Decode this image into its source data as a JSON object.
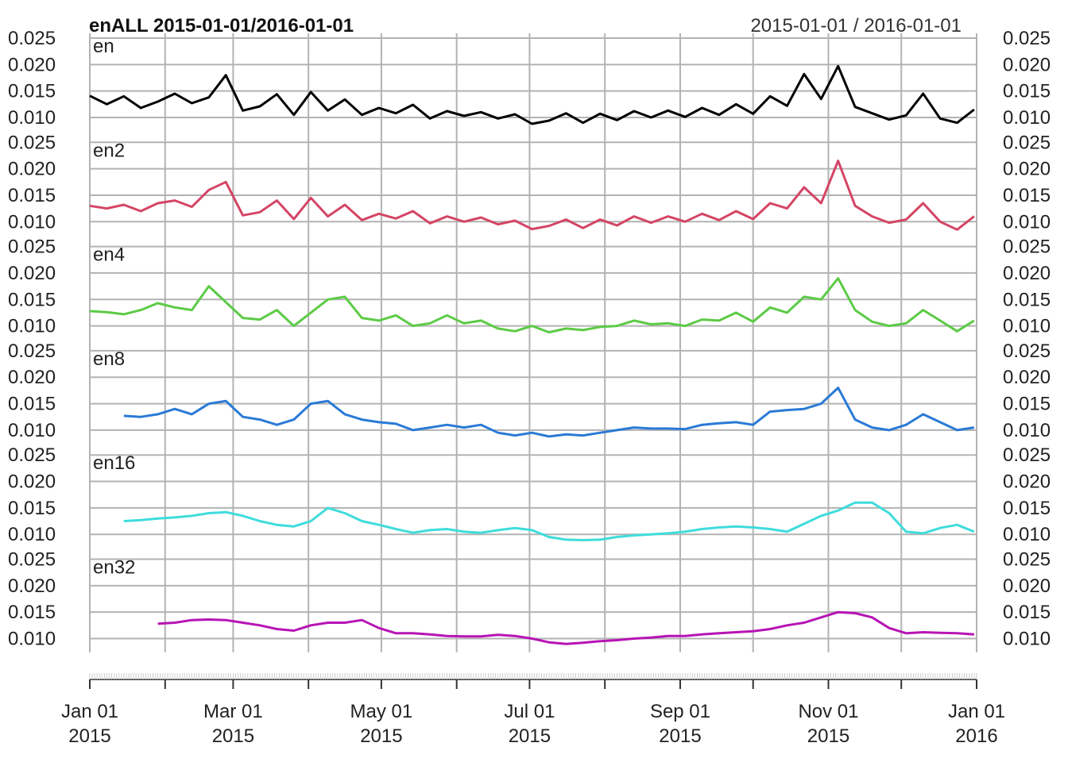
{
  "chart_data": {
    "type": "line",
    "title": "enALL  2015-01-01/2016-01-01",
    "date_range_label": "2015-01-01 / 2016-01-01",
    "ylim": [
      0.005,
      0.026
    ],
    "y_ticks": [
      "0.025",
      "0.020",
      "0.015",
      "0.010"
    ],
    "x_range": [
      "2015-01-01",
      "2016-01-01"
    ],
    "x_ticks": [
      {
        "line1": "Jan 01",
        "line2": "2015"
      },
      {
        "line1": "Mar 01",
        "line2": "2015"
      },
      {
        "line1": "May 01",
        "line2": "2015"
      },
      {
        "line1": "Jul 01",
        "line2": "2015"
      },
      {
        "line1": "Sep 01",
        "line2": "2015"
      },
      {
        "line1": "Nov 01",
        "line2": "2015"
      },
      {
        "line1": "Jan 01",
        "line2": "2016"
      }
    ],
    "grid": true,
    "series": [
      {
        "name": "en",
        "color": "#000000",
        "start": "2015-01-01",
        "x": [
          "2015-01-01",
          "2015-01-08",
          "2015-01-15",
          "2015-01-22",
          "2015-01-29",
          "2015-02-05",
          "2015-02-12",
          "2015-02-19",
          "2015-02-26",
          "2015-03-05",
          "2015-03-12",
          "2015-03-19",
          "2015-03-26",
          "2015-04-02",
          "2015-04-09",
          "2015-04-16",
          "2015-04-23",
          "2015-04-30",
          "2015-05-07",
          "2015-05-14",
          "2015-05-21",
          "2015-05-28",
          "2015-06-04",
          "2015-06-11",
          "2015-06-18",
          "2015-06-25",
          "2015-07-02",
          "2015-07-09",
          "2015-07-16",
          "2015-07-23",
          "2015-07-30",
          "2015-08-06",
          "2015-08-13",
          "2015-08-20",
          "2015-08-27",
          "2015-09-03",
          "2015-09-10",
          "2015-09-17",
          "2015-09-24",
          "2015-10-01",
          "2015-10-08",
          "2015-10-15",
          "2015-10-22",
          "2015-10-29",
          "2015-11-05",
          "2015-11-12",
          "2015-11-19",
          "2015-11-26",
          "2015-12-03",
          "2015-12-10",
          "2015-12-17",
          "2015-12-24",
          "2015-12-31"
        ],
        "values": [
          0.0141,
          0.0125,
          0.014,
          0.0118,
          0.013,
          0.0145,
          0.0127,
          0.0138,
          0.018,
          0.0113,
          0.0121,
          0.0144,
          0.0105,
          0.0148,
          0.0113,
          0.0134,
          0.0105,
          0.0118,
          0.0108,
          0.0124,
          0.0098,
          0.0112,
          0.0103,
          0.011,
          0.0098,
          0.0106,
          0.0088,
          0.0094,
          0.0108,
          0.009,
          0.0107,
          0.0095,
          0.0112,
          0.01,
          0.0113,
          0.0101,
          0.0118,
          0.0105,
          0.0125,
          0.0107,
          0.014,
          0.0122,
          0.0182,
          0.0135,
          0.0197,
          0.012,
          0.0108,
          0.0096,
          0.0104,
          0.0145,
          0.0098,
          0.009,
          0.0115
        ]
      },
      {
        "name": "en2",
        "color": "#d44565",
        "start": "2015-01-01",
        "x": [
          "2015-01-01",
          "2015-01-08",
          "2015-01-15",
          "2015-01-22",
          "2015-01-29",
          "2015-02-05",
          "2015-02-12",
          "2015-02-19",
          "2015-02-26",
          "2015-03-05",
          "2015-03-12",
          "2015-03-19",
          "2015-03-26",
          "2015-04-02",
          "2015-04-09",
          "2015-04-16",
          "2015-04-23",
          "2015-04-30",
          "2015-05-07",
          "2015-05-14",
          "2015-05-21",
          "2015-05-28",
          "2015-06-04",
          "2015-06-11",
          "2015-06-18",
          "2015-06-25",
          "2015-07-02",
          "2015-07-09",
          "2015-07-16",
          "2015-07-23",
          "2015-07-30",
          "2015-08-06",
          "2015-08-13",
          "2015-08-20",
          "2015-08-27",
          "2015-09-03",
          "2015-09-10",
          "2015-09-17",
          "2015-09-24",
          "2015-10-01",
          "2015-10-08",
          "2015-10-15",
          "2015-10-22",
          "2015-10-29",
          "2015-11-05",
          "2015-11-12",
          "2015-11-19",
          "2015-11-26",
          "2015-12-03",
          "2015-12-10",
          "2015-12-17",
          "2015-12-24",
          "2015-12-31"
        ],
        "values": [
          0.013,
          0.0125,
          0.0132,
          0.012,
          0.0135,
          0.014,
          0.0128,
          0.016,
          0.0175,
          0.0112,
          0.0118,
          0.014,
          0.0105,
          0.0145,
          0.011,
          0.0132,
          0.0103,
          0.0115,
          0.0106,
          0.012,
          0.0097,
          0.011,
          0.01,
          0.0108,
          0.0095,
          0.0102,
          0.0086,
          0.0092,
          0.0104,
          0.0088,
          0.0104,
          0.0093,
          0.011,
          0.0098,
          0.011,
          0.01,
          0.0115,
          0.0103,
          0.012,
          0.0105,
          0.0135,
          0.0125,
          0.0165,
          0.0135,
          0.0215,
          0.013,
          0.011,
          0.0098,
          0.0104,
          0.0135,
          0.01,
          0.0085,
          0.011
        ]
      },
      {
        "name": "en4",
        "color": "#5ccb46",
        "start": "2015-01-01",
        "x": [
          "2015-01-01",
          "2015-01-08",
          "2015-01-15",
          "2015-01-22",
          "2015-01-29",
          "2015-02-05",
          "2015-02-12",
          "2015-02-19",
          "2015-02-26",
          "2015-03-05",
          "2015-03-12",
          "2015-03-19",
          "2015-03-26",
          "2015-04-02",
          "2015-04-09",
          "2015-04-16",
          "2015-04-23",
          "2015-04-30",
          "2015-05-07",
          "2015-05-14",
          "2015-05-21",
          "2015-05-28",
          "2015-06-04",
          "2015-06-11",
          "2015-06-18",
          "2015-06-25",
          "2015-07-02",
          "2015-07-09",
          "2015-07-16",
          "2015-07-23",
          "2015-07-30",
          "2015-08-06",
          "2015-08-13",
          "2015-08-20",
          "2015-08-27",
          "2015-09-03",
          "2015-09-10",
          "2015-09-17",
          "2015-09-24",
          "2015-10-01",
          "2015-10-08",
          "2015-10-15",
          "2015-10-22",
          "2015-10-29",
          "2015-11-05",
          "2015-11-12",
          "2015-11-19",
          "2015-11-26",
          "2015-12-03",
          "2015-12-10",
          "2015-12-17",
          "2015-12-24",
          "2015-12-31"
        ],
        "values": [
          0.0128,
          0.0126,
          0.0122,
          0.013,
          0.0143,
          0.0135,
          0.013,
          0.0175,
          0.0145,
          0.0115,
          0.0112,
          0.013,
          0.01,
          0.0125,
          0.015,
          0.0155,
          0.0115,
          0.011,
          0.012,
          0.01,
          0.0105,
          0.012,
          0.0105,
          0.011,
          0.0095,
          0.009,
          0.01,
          0.0088,
          0.0095,
          0.0092,
          0.0098,
          0.01,
          0.011,
          0.0103,
          0.0105,
          0.01,
          0.0112,
          0.011,
          0.0125,
          0.0108,
          0.0135,
          0.0125,
          0.0155,
          0.015,
          0.019,
          0.013,
          0.0108,
          0.01,
          0.0105,
          0.013,
          0.011,
          0.009,
          0.011
        ]
      },
      {
        "name": "en8",
        "color": "#2a7ad6",
        "start": "2015-01-15",
        "x": [
          "2015-01-15",
          "2015-01-22",
          "2015-01-29",
          "2015-02-05",
          "2015-02-12",
          "2015-02-19",
          "2015-02-26",
          "2015-03-05",
          "2015-03-12",
          "2015-03-19",
          "2015-03-26",
          "2015-04-02",
          "2015-04-09",
          "2015-04-16",
          "2015-04-23",
          "2015-04-30",
          "2015-05-07",
          "2015-05-14",
          "2015-05-21",
          "2015-05-28",
          "2015-06-04",
          "2015-06-11",
          "2015-06-18",
          "2015-06-25",
          "2015-07-02",
          "2015-07-09",
          "2015-07-16",
          "2015-07-23",
          "2015-07-30",
          "2015-08-06",
          "2015-08-13",
          "2015-08-20",
          "2015-08-27",
          "2015-09-03",
          "2015-09-10",
          "2015-09-17",
          "2015-09-24",
          "2015-10-01",
          "2015-10-08",
          "2015-10-15",
          "2015-10-22",
          "2015-10-29",
          "2015-11-05",
          "2015-11-12",
          "2015-11-19",
          "2015-11-26",
          "2015-12-03",
          "2015-12-10",
          "2015-12-17",
          "2015-12-24",
          "2015-12-31"
        ],
        "values": [
          0.0127,
          0.0125,
          0.013,
          0.014,
          0.013,
          0.015,
          0.0155,
          0.0125,
          0.012,
          0.011,
          0.012,
          0.015,
          0.0155,
          0.013,
          0.012,
          0.0115,
          0.0112,
          0.01,
          0.0105,
          0.011,
          0.0105,
          0.011,
          0.0095,
          0.009,
          0.0095,
          0.0088,
          0.0092,
          0.009,
          0.0095,
          0.01,
          0.0105,
          0.0103,
          0.0103,
          0.0102,
          0.011,
          0.0113,
          0.0115,
          0.011,
          0.0135,
          0.0138,
          0.014,
          0.015,
          0.018,
          0.012,
          0.0105,
          0.01,
          0.011,
          0.013,
          0.0115,
          0.01,
          0.0105
        ]
      },
      {
        "name": "en16",
        "color": "#3fdcdc",
        "start": "2015-01-15",
        "x": [
          "2015-01-15",
          "2015-01-22",
          "2015-01-29",
          "2015-02-05",
          "2015-02-12",
          "2015-02-19",
          "2015-02-26",
          "2015-03-05",
          "2015-03-12",
          "2015-03-19",
          "2015-03-26",
          "2015-04-02",
          "2015-04-09",
          "2015-04-16",
          "2015-04-23",
          "2015-04-30",
          "2015-05-07",
          "2015-05-14",
          "2015-05-21",
          "2015-05-28",
          "2015-06-04",
          "2015-06-11",
          "2015-06-18",
          "2015-06-25",
          "2015-07-02",
          "2015-07-09",
          "2015-07-16",
          "2015-07-23",
          "2015-07-30",
          "2015-08-06",
          "2015-08-13",
          "2015-08-20",
          "2015-08-27",
          "2015-09-03",
          "2015-09-10",
          "2015-09-17",
          "2015-09-24",
          "2015-10-01",
          "2015-10-08",
          "2015-10-15",
          "2015-10-22",
          "2015-10-29",
          "2015-11-05",
          "2015-11-12",
          "2015-11-19",
          "2015-11-26",
          "2015-12-03",
          "2015-12-10",
          "2015-12-17",
          "2015-12-24",
          "2015-12-31"
        ],
        "values": [
          0.0125,
          0.0127,
          0.013,
          0.0132,
          0.0135,
          0.014,
          0.0142,
          0.0135,
          0.0125,
          0.0118,
          0.0115,
          0.0125,
          0.015,
          0.014,
          0.0125,
          0.0118,
          0.011,
          0.0103,
          0.0108,
          0.011,
          0.0105,
          0.0103,
          0.0108,
          0.0112,
          0.0108,
          0.0095,
          0.009,
          0.0089,
          0.009,
          0.0095,
          0.0098,
          0.01,
          0.0102,
          0.0105,
          0.011,
          0.0113,
          0.0115,
          0.0113,
          0.011,
          0.0105,
          0.012,
          0.0135,
          0.0145,
          0.016,
          0.016,
          0.014,
          0.0105,
          0.0102,
          0.0112,
          0.0118,
          0.0105
        ]
      },
      {
        "name": "en32",
        "color": "#b714b5",
        "start": "2015-01-29",
        "x": [
          "2015-01-29",
          "2015-02-05",
          "2015-02-12",
          "2015-02-19",
          "2015-02-26",
          "2015-03-05",
          "2015-03-12",
          "2015-03-19",
          "2015-03-26",
          "2015-04-02",
          "2015-04-09",
          "2015-04-16",
          "2015-04-23",
          "2015-04-30",
          "2015-05-07",
          "2015-05-14",
          "2015-05-21",
          "2015-05-28",
          "2015-06-04",
          "2015-06-11",
          "2015-06-18",
          "2015-06-25",
          "2015-07-02",
          "2015-07-09",
          "2015-07-16",
          "2015-07-23",
          "2015-07-30",
          "2015-08-06",
          "2015-08-13",
          "2015-08-20",
          "2015-08-27",
          "2015-09-03",
          "2015-09-10",
          "2015-09-17",
          "2015-09-24",
          "2015-10-01",
          "2015-10-08",
          "2015-10-15",
          "2015-10-22",
          "2015-10-29",
          "2015-11-05",
          "2015-11-12",
          "2015-11-19",
          "2015-11-26",
          "2015-12-03",
          "2015-12-10",
          "2015-12-17",
          "2015-12-24",
          "2015-12-31"
        ],
        "values": [
          0.0128,
          0.013,
          0.0135,
          0.0136,
          0.0135,
          0.013,
          0.0125,
          0.0118,
          0.0115,
          0.0125,
          0.013,
          0.013,
          0.0135,
          0.012,
          0.011,
          0.011,
          0.0108,
          0.0105,
          0.0104,
          0.0104,
          0.0107,
          0.0105,
          0.01,
          0.0093,
          0.009,
          0.0092,
          0.0095,
          0.0097,
          0.01,
          0.0102,
          0.0105,
          0.0105,
          0.0108,
          0.011,
          0.0112,
          0.0114,
          0.0118,
          0.0125,
          0.013,
          0.014,
          0.015,
          0.0148,
          0.014,
          0.012,
          0.011,
          0.0112,
          0.0111,
          0.011,
          0.0108
        ]
      }
    ]
  }
}
